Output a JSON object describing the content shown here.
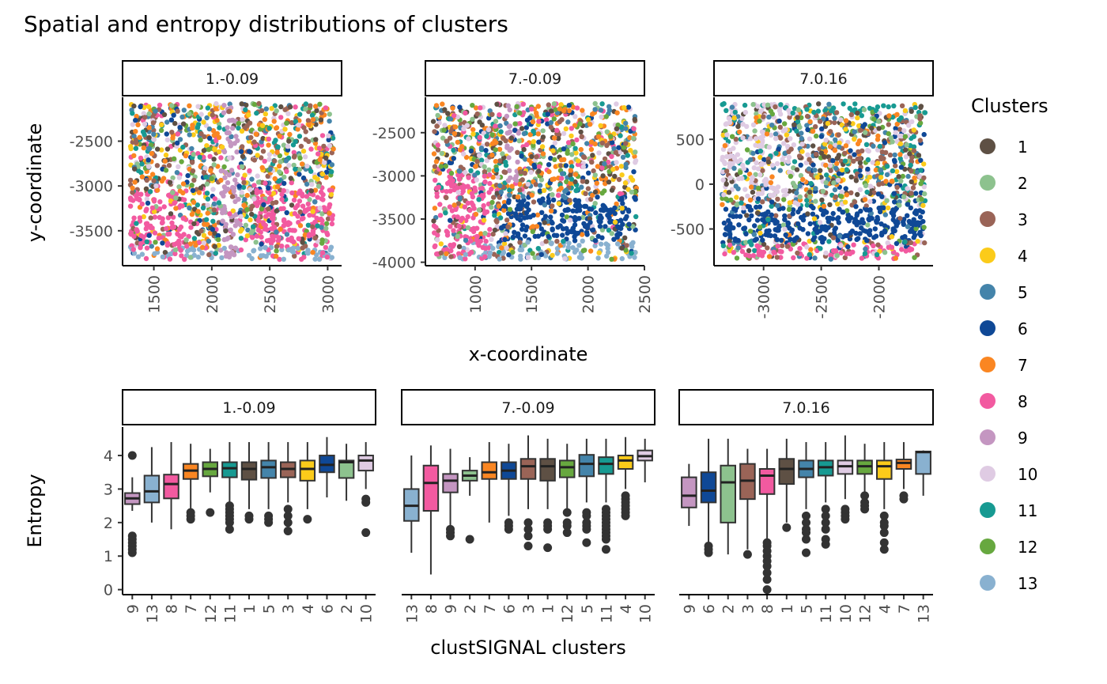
{
  "title": "Spatial and entropy distributions of clusters",
  "colors": {
    "1": "#5E5044",
    "2": "#8DC28E",
    "3": "#9A6457",
    "4": "#FBCB1A",
    "5": "#4484AA",
    "6": "#0F4896",
    "7": "#FA8622",
    "8": "#F25AA0",
    "9": "#C496C1",
    "10": "#DFCBE3",
    "11": "#179A92",
    "12": "#67A83F",
    "13": "#89B1D0"
  },
  "legend": {
    "title": "Clusters",
    "items": [
      "1",
      "2",
      "3",
      "4",
      "5",
      "6",
      "7",
      "8",
      "9",
      "10",
      "11",
      "12",
      "13"
    ]
  },
  "chart_data": [
    {
      "type": "scatter",
      "xlabel": "x-coordinate",
      "ylabel": "y-coordinate",
      "grid": false,
      "legend_position": "right",
      "panels": [
        {
          "label": "1.-0.09",
          "xlim": [
            1230,
            3120
          ],
          "ylim": [
            -3890,
            -2010
          ],
          "xticks": [
            1500,
            2000,
            2500,
            3000
          ],
          "yticks": [
            -2500,
            -3000,
            -3500
          ]
        },
        {
          "label": "7.-0.09",
          "xlim": [
            560,
            2500
          ],
          "ylim": [
            -4040,
            -2090
          ],
          "xticks": [
            1000,
            1500,
            2000,
            2500
          ],
          "yticks": [
            -2500,
            -3000,
            -3500,
            -4000
          ]
        },
        {
          "label": "7.0.16",
          "xlim": [
            -3430,
            -1530
          ],
          "ylim": [
            -910,
            970
          ],
          "xticks": [
            -3000,
            -2500,
            -2000
          ],
          "yticks": [
            500,
            0,
            -500
          ]
        }
      ]
    },
    {
      "type": "box",
      "xlabel": "clustSIGNAL clusters",
      "ylabel": "Entropy",
      "ylim": [
        -0.15,
        4.85
      ],
      "yticks": [
        0,
        1,
        2,
        3,
        4
      ],
      "grid": false,
      "panels": [
        {
          "label": "1.-0.09",
          "boxes": [
            {
              "cluster": "9",
              "q1": 2.55,
              "median": 2.72,
              "q3": 2.88,
              "lo": 2.35,
              "hi": 3.35,
              "outliers": [
                1.1,
                1.2,
                1.3,
                1.4,
                1.5,
                1.6,
                4.0
              ]
            },
            {
              "cluster": "13",
              "q1": 2.6,
              "median": 2.93,
              "q3": 3.4,
              "lo": 2.0,
              "hi": 4.25,
              "outliers": []
            },
            {
              "cluster": "8",
              "q1": 2.72,
              "median": 3.15,
              "q3": 3.43,
              "lo": 1.8,
              "hi": 4.4,
              "outliers": []
            },
            {
              "cluster": "7",
              "q1": 3.3,
              "median": 3.55,
              "q3": 3.75,
              "lo": 2.4,
              "hi": 4.35,
              "outliers": [
                2.1,
                2.2,
                2.3
              ]
            },
            {
              "cluster": "12",
              "q1": 3.38,
              "median": 3.6,
              "q3": 3.8,
              "lo": 2.9,
              "hi": 4.2,
              "outliers": [
                2.3
              ]
            },
            {
              "cluster": "11",
              "q1": 3.35,
              "median": 3.62,
              "q3": 3.8,
              "lo": 2.6,
              "hi": 4.4,
              "outliers": [
                1.8,
                2.0,
                2.1,
                2.2,
                2.3,
                2.4,
                2.5
              ]
            },
            {
              "cluster": "1",
              "q1": 3.28,
              "median": 3.6,
              "q3": 3.8,
              "lo": 2.4,
              "hi": 4.4,
              "outliers": [
                2.1,
                2.2
              ]
            },
            {
              "cluster": "5",
              "q1": 3.33,
              "median": 3.65,
              "q3": 3.85,
              "lo": 2.4,
              "hi": 4.4,
              "outliers": [
                2.0,
                2.1,
                2.2
              ]
            },
            {
              "cluster": "3",
              "q1": 3.35,
              "median": 3.6,
              "q3": 3.8,
              "lo": 2.6,
              "hi": 4.4,
              "outliers": [
                1.75,
                2.0,
                2.2,
                2.4
              ]
            },
            {
              "cluster": "4",
              "q1": 3.25,
              "median": 3.6,
              "q3": 3.85,
              "lo": 2.4,
              "hi": 4.4,
              "outliers": [
                2.1
              ]
            },
            {
              "cluster": "6",
              "q1": 3.5,
              "median": 3.72,
              "q3": 4.0,
              "lo": 2.75,
              "hi": 4.55,
              "outliers": []
            },
            {
              "cluster": "2",
              "q1": 3.33,
              "median": 3.8,
              "q3": 3.85,
              "lo": 2.65,
              "hi": 4.35,
              "outliers": []
            },
            {
              "cluster": "10",
              "q1": 3.55,
              "median": 3.85,
              "q3": 4.0,
              "lo": 3.0,
              "hi": 4.4,
              "outliers": [
                1.7,
                2.6,
                2.7
              ]
            }
          ]
        },
        {
          "label": "7.-0.09",
          "boxes": [
            {
              "cluster": "13",
              "q1": 2.05,
              "median": 2.5,
              "q3": 3.0,
              "lo": 1.1,
              "hi": 4.0,
              "outliers": []
            },
            {
              "cluster": "8",
              "q1": 2.35,
              "median": 3.18,
              "q3": 3.7,
              "lo": 0.45,
              "hi": 4.3,
              "outliers": []
            },
            {
              "cluster": "9",
              "q1": 2.9,
              "median": 3.25,
              "q3": 3.45,
              "lo": 1.9,
              "hi": 4.2,
              "outliers": [
                1.6,
                1.7,
                1.8
              ]
            },
            {
              "cluster": "2",
              "q1": 3.25,
              "median": 3.4,
              "q3": 3.55,
              "lo": 2.8,
              "hi": 3.95,
              "outliers": [
                1.5
              ]
            },
            {
              "cluster": "7",
              "q1": 3.3,
              "median": 3.5,
              "q3": 3.8,
              "lo": 2.0,
              "hi": 4.4,
              "outliers": []
            },
            {
              "cluster": "6",
              "q1": 3.3,
              "median": 3.55,
              "q3": 3.8,
              "lo": 2.2,
              "hi": 4.35,
              "outliers": [
                1.8,
                1.9,
                2.0
              ]
            },
            {
              "cluster": "3",
              "q1": 3.3,
              "median": 3.68,
              "q3": 3.9,
              "lo": 2.4,
              "hi": 4.6,
              "outliers": [
                1.3,
                1.6,
                1.8,
                2.0
              ]
            },
            {
              "cluster": "1",
              "q1": 3.25,
              "median": 3.68,
              "q3": 3.9,
              "lo": 2.4,
              "hi": 4.5,
              "outliers": [
                1.25,
                1.8,
                1.9,
                2.0
              ]
            },
            {
              "cluster": "12",
              "q1": 3.35,
              "median": 3.65,
              "q3": 3.85,
              "lo": 2.4,
              "hi": 4.35,
              "outliers": [
                1.7,
                1.9,
                2.0,
                2.3
              ]
            },
            {
              "cluster": "5",
              "q1": 3.38,
              "median": 3.75,
              "q3": 4.02,
              "lo": 2.6,
              "hi": 4.5,
              "outliers": [
                1.4,
                1.8,
                1.9,
                2.0,
                2.2,
                2.3
              ]
            },
            {
              "cluster": "11",
              "q1": 3.45,
              "median": 3.75,
              "q3": 3.95,
              "lo": 2.6,
              "hi": 4.5,
              "outliers": [
                1.2,
                1.5,
                1.6,
                1.7,
                1.8,
                1.9,
                2.0,
                2.1,
                2.2,
                2.3,
                2.4
              ]
            },
            {
              "cluster": "4",
              "q1": 3.6,
              "median": 3.85,
              "q3": 4.0,
              "lo": 3.0,
              "hi": 4.55,
              "outliers": [
                2.2,
                2.3,
                2.4,
                2.5,
                2.6,
                2.7,
                2.8
              ]
            },
            {
              "cluster": "10",
              "q1": 3.85,
              "median": 3.98,
              "q3": 4.15,
              "lo": 3.2,
              "hi": 4.5,
              "outliers": []
            }
          ]
        },
        {
          "label": "7.0.16",
          "boxes": [
            {
              "cluster": "9",
              "q1": 2.45,
              "median": 2.8,
              "q3": 3.35,
              "lo": 1.9,
              "hi": 3.75,
              "outliers": []
            },
            {
              "cluster": "6",
              "q1": 2.6,
              "median": 2.95,
              "q3": 3.5,
              "lo": 1.4,
              "hi": 4.5,
              "outliers": [
                1.1,
                1.2,
                1.3
              ]
            },
            {
              "cluster": "2",
              "q1": 2.0,
              "median": 3.2,
              "q3": 3.7,
              "lo": 1.05,
              "hi": 4.5,
              "outliers": []
            },
            {
              "cluster": "3",
              "q1": 2.7,
              "median": 3.25,
              "q3": 3.75,
              "lo": 1.2,
              "hi": 4.2,
              "outliers": [
                1.05
              ]
            },
            {
              "cluster": "8",
              "q1": 2.85,
              "median": 3.4,
              "q3": 3.6,
              "lo": 1.5,
              "hi": 4.2,
              "outliers": [
                0.0,
                0.3,
                0.5,
                0.7,
                0.85,
                1.0,
                1.15,
                1.3,
                1.4
              ]
            },
            {
              "cluster": "1",
              "q1": 3.15,
              "median": 3.6,
              "q3": 3.9,
              "lo": 2.0,
              "hi": 4.5,
              "outliers": [
                1.85
              ]
            },
            {
              "cluster": "5",
              "q1": 3.35,
              "median": 3.6,
              "q3": 3.85,
              "lo": 2.4,
              "hi": 4.4,
              "outliers": [
                1.1,
                1.5,
                1.7,
                1.8,
                2.0,
                2.2
              ]
            },
            {
              "cluster": "11",
              "q1": 3.4,
              "median": 3.65,
              "q3": 3.85,
              "lo": 2.6,
              "hi": 4.4,
              "outliers": [
                1.35,
                1.5,
                1.8,
                2.0,
                2.2,
                2.4
              ]
            },
            {
              "cluster": "10",
              "q1": 3.45,
              "median": 3.68,
              "q3": 3.85,
              "lo": 2.7,
              "hi": 4.6,
              "outliers": [
                2.1,
                2.2,
                2.3,
                2.4
              ]
            },
            {
              "cluster": "12",
              "q1": 3.45,
              "median": 3.68,
              "q3": 3.85,
              "lo": 2.9,
              "hi": 4.35,
              "outliers": [
                2.4,
                2.5,
                2.6,
                2.8
              ]
            },
            {
              "cluster": "4",
              "q1": 3.3,
              "median": 3.68,
              "q3": 3.85,
              "lo": 2.4,
              "hi": 4.4,
              "outliers": [
                1.2,
                1.4,
                1.7,
                1.9,
                2.0,
                2.2
              ]
            },
            {
              "cluster": "7",
              "q1": 3.6,
              "median": 3.78,
              "q3": 3.88,
              "lo": 3.0,
              "hi": 4.4,
              "outliers": [
                2.7,
                2.8
              ]
            },
            {
              "cluster": "13",
              "q1": 3.45,
              "median": 4.1,
              "q3": 4.12,
              "lo": 2.8,
              "hi": 4.15,
              "outliers": []
            }
          ]
        }
      ]
    }
  ]
}
